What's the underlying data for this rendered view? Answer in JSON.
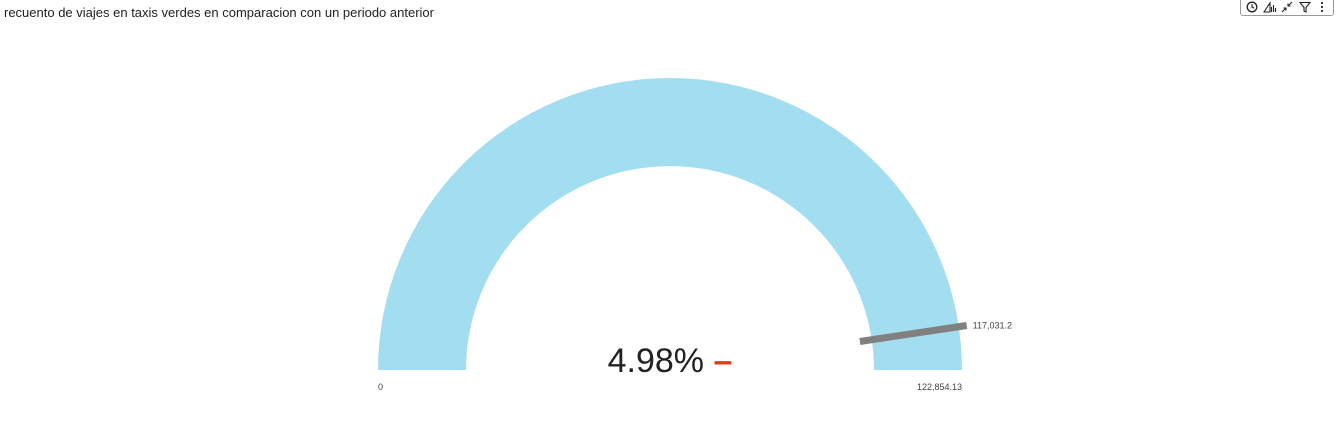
{
  "title": "recuento de viajes en  taxis verdes en comparacion con un periodo anterior",
  "toolbar": {
    "icons": [
      "focus-mode-icon",
      "drill-icon",
      "collapse-icon",
      "filter-icon",
      "more-options-icon"
    ]
  },
  "colors": {
    "gauge_fill": "#a2ddf0",
    "target_marker": "#808080",
    "trend_indicator": "#d9401b",
    "text": "#222222"
  },
  "chart_data": {
    "type": "gauge",
    "min": 0,
    "max": 122854.13,
    "value": 122854.13,
    "target": 117031.2,
    "labels": {
      "min": "0",
      "max": "122,854.13",
      "target": "117,031.2",
      "center_value": "4.98%",
      "trend": "–"
    }
  }
}
